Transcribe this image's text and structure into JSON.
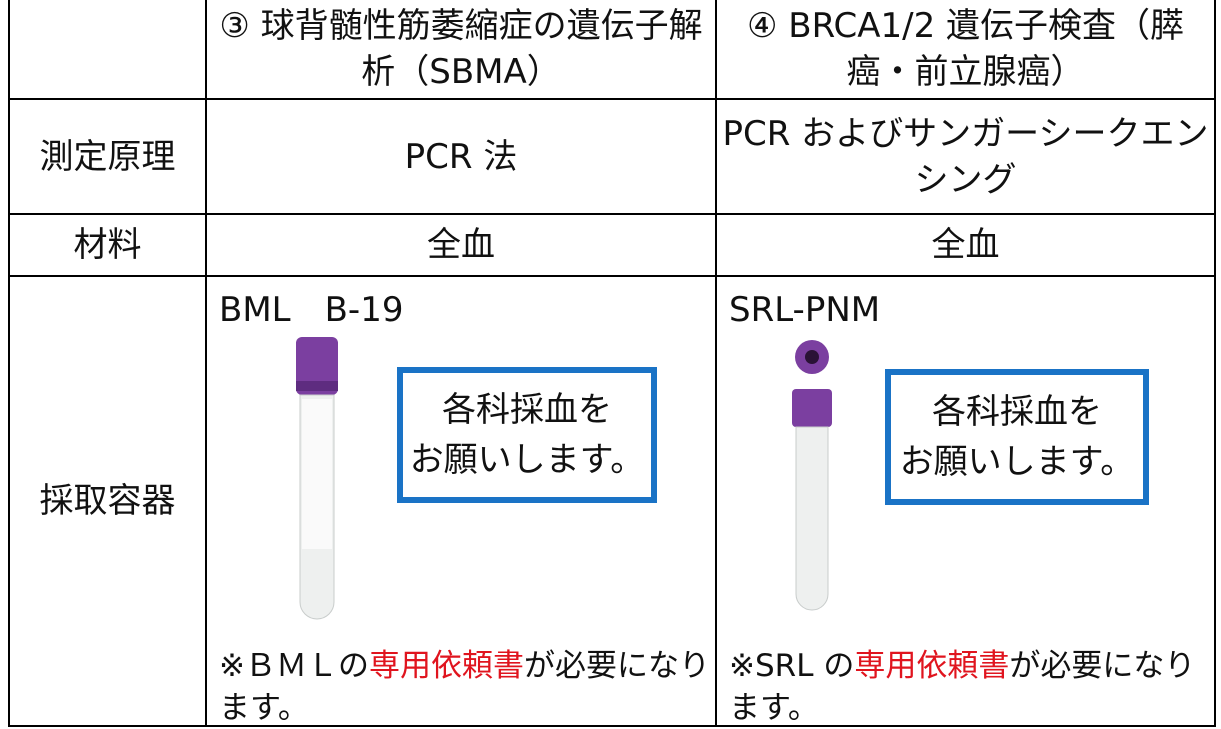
{
  "table": {
    "columns": [
      "③ 球背髄性筋萎縮症の遺伝子解析（SBMA）",
      "④ BRCA1/2 遺伝子検査（膵癌・前立腺癌）"
    ],
    "rows": [
      {
        "label": "測定原理",
        "cells": [
          "PCR 法",
          "PCR およびサンガーシークエンシング"
        ]
      },
      {
        "label": "材料",
        "cells": [
          "全血",
          "全血"
        ]
      }
    ],
    "container": {
      "label": "採取容器",
      "cells": [
        {
          "code": "BML　B-19",
          "notice": [
            "各科採血を",
            "お願いします。"
          ],
          "note": [
            "※ＢＭＬの",
            "専用依頼書",
            "が必要になります。"
          ]
        },
        {
          "code": "SRL-PNM",
          "notice": [
            "各科採血を",
            "お願いします。"
          ],
          "note": [
            "※SRL の",
            "専用依頼書",
            "が必要になります。"
          ]
        }
      ]
    }
  }
}
